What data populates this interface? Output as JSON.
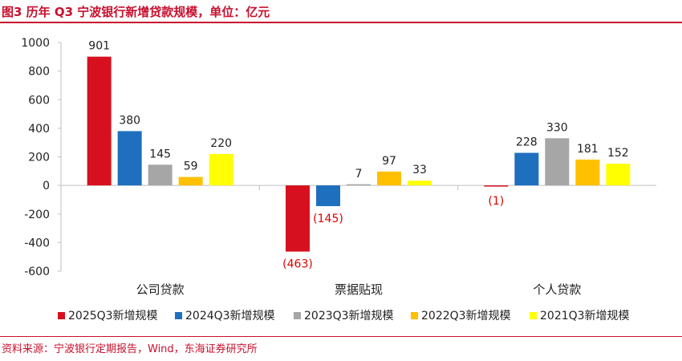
{
  "title": "图3  历年 Q3 宁波银行新增贷款规模，单位：亿元",
  "source": "资料来源：宁波银行定期报告，Wind，东海证券研究所",
  "colors": {
    "brand": "#c8102e",
    "negative_label": "#e00000",
    "series": [
      "#d7101f",
      "#1f6fbf",
      "#a6a6a6",
      "#ffc000",
      "#ffff00"
    ]
  },
  "chart_data": {
    "type": "bar",
    "title": "历年 Q3 宁波银行新增贷款规模",
    "ylabel": "亿元",
    "xlabel": "",
    "ylim": [
      -600,
      1000
    ],
    "yticks": [
      -600,
      -400,
      -200,
      0,
      200,
      400,
      600,
      800,
      1000
    ],
    "grid": false,
    "legend_position": "bottom",
    "categories": [
      "公司贷款",
      "票据贴现",
      "个人贷款"
    ],
    "series": [
      {
        "name": "2025Q3新增规模",
        "values": [
          901,
          -463,
          -1
        ]
      },
      {
        "name": "2024Q3新增规模",
        "values": [
          380,
          -145,
          228
        ]
      },
      {
        "name": "2023Q3新增规模",
        "values": [
          145,
          7,
          330
        ]
      },
      {
        "name": "2022Q3新增规模",
        "values": [
          59,
          97,
          181
        ]
      },
      {
        "name": "2021Q3新增规模",
        "values": [
          220,
          33,
          152
        ]
      }
    ]
  }
}
